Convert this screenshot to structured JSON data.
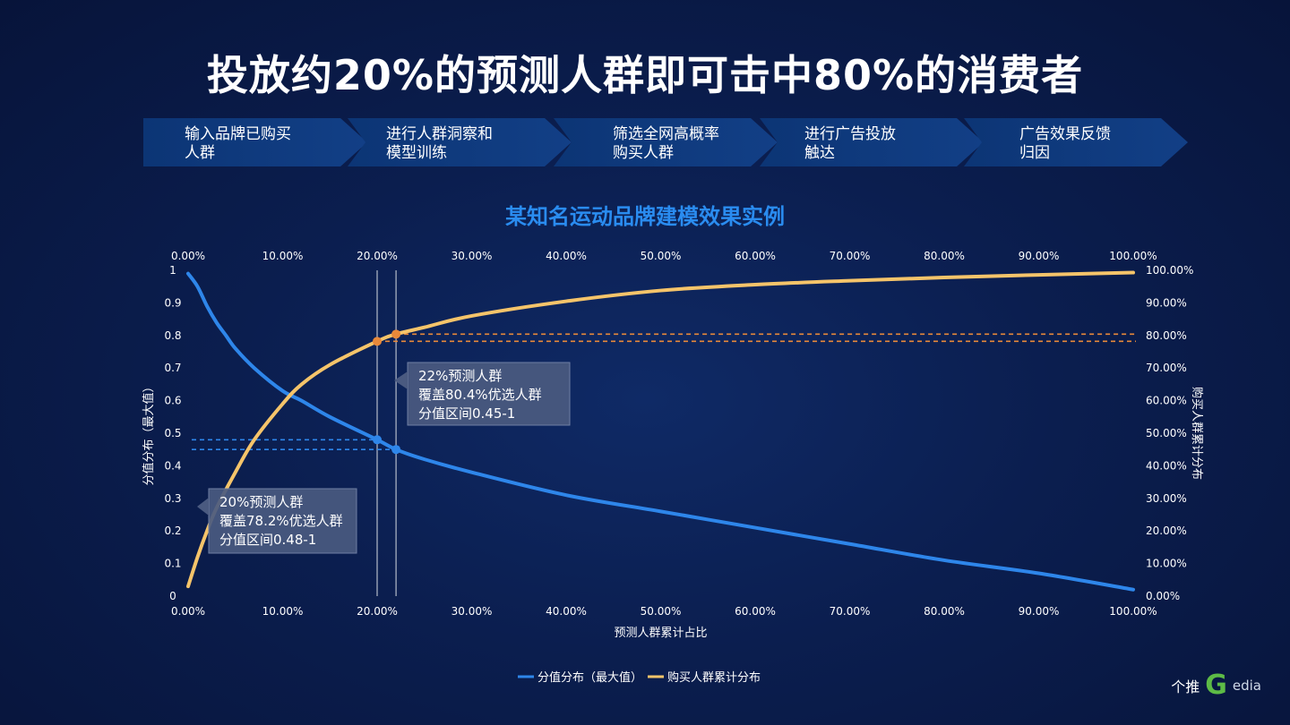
{
  "page": {
    "title": "投放约20%的预测人群即可击中80%的消费者",
    "steps": [
      {
        "label": "输入品牌已购买\n人群"
      },
      {
        "label": "进行人群洞察和\n模型训练"
      },
      {
        "label": "筛选全网高概率\n购买人群"
      },
      {
        "label": "进行广告投放\n触达"
      },
      {
        "label": "广告效果反馈\n归因"
      }
    ],
    "logo": {
      "brand_a": "个推",
      "brand_g": "G",
      "brand_b": "edia"
    }
  },
  "chart_data": {
    "type": "line",
    "title": "某知名运动品牌建模效果实例",
    "xlabel": "预测人群累计占比",
    "ylabel_left": "分值分布（最大值）",
    "ylabel_right": "购买人群累计分布",
    "x_ticks": [
      "0.00%",
      "10.00%",
      "20.00%",
      "30.00%",
      "40.00%",
      "50.00%",
      "60.00%",
      "70.00%",
      "80.00%",
      "90.00%",
      "100.00%"
    ],
    "y_left_ticks": [
      "0",
      "0.1",
      "0.2",
      "0.3",
      "0.4",
      "0.5",
      "0.6",
      "0.7",
      "0.8",
      "0.9",
      "1"
    ],
    "y_right_ticks": [
      "0.00%",
      "10.00%",
      "20.00%",
      "30.00%",
      "40.00%",
      "50.00%",
      "60.00%",
      "70.00%",
      "80.00%",
      "90.00%",
      "100.00%"
    ],
    "xlim": [
      0,
      100
    ],
    "ylim_left": [
      0,
      1
    ],
    "ylim_right": [
      0,
      100
    ],
    "series": [
      {
        "name": "分值分布（最大值）",
        "axis": "left",
        "color": "#2e86ea",
        "x": [
          0,
          1,
          2,
          3,
          4,
          5,
          7,
          10,
          12,
          15,
          20,
          22,
          25,
          30,
          40,
          50,
          60,
          70,
          80,
          90,
          100
        ],
        "y": [
          0.99,
          0.95,
          0.89,
          0.84,
          0.8,
          0.76,
          0.7,
          0.63,
          0.6,
          0.55,
          0.48,
          0.45,
          0.42,
          0.38,
          0.31,
          0.26,
          0.21,
          0.16,
          0.11,
          0.07,
          0.02
        ]
      },
      {
        "name": "购买人群累计分布",
        "axis": "right",
        "color": "#f5c46a",
        "x": [
          0,
          1,
          2,
          3,
          5,
          7,
          10,
          12,
          15,
          20,
          22,
          25,
          30,
          40,
          50,
          60,
          70,
          80,
          90,
          100
        ],
        "y": [
          3,
          12,
          20,
          27,
          38,
          48,
          59,
          65,
          71,
          78.2,
          80.4,
          82.5,
          86,
          90.5,
          93.8,
          95.6,
          96.8,
          97.8,
          98.6,
          99.3
        ]
      }
    ],
    "markers": [
      {
        "x": 20,
        "score": 0.48,
        "cum": 78.2
      },
      {
        "x": 22,
        "score": 0.45,
        "cum": 80.4
      }
    ],
    "annotations": [
      {
        "lines": [
          "22%预测人群",
          "覆盖80.4%优选人群",
          "分值区间0.45-1"
        ]
      },
      {
        "lines": [
          "20%预测人群",
          "覆盖78.2%优选人群",
          "分值区间0.48-1"
        ]
      }
    ],
    "colors": {
      "score": "#2e86ea",
      "cum": "#f5c46a",
      "marker_orange": "#e8893a",
      "callout": "#4a5a80"
    },
    "legend": {
      "position": "bottom"
    },
    "grid": false
  }
}
